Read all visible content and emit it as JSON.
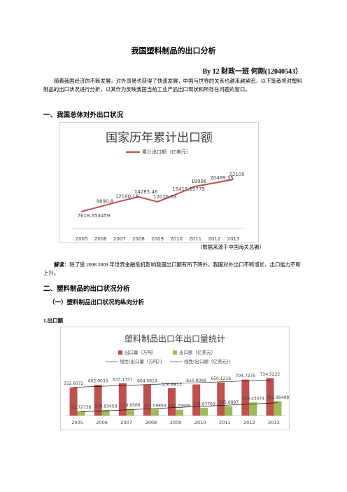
{
  "title": "我国塑料制品的出口分析",
  "author": "By 12 财政一班  何刚(12040543）",
  "intro": "随着我国经济的不断发展，对外贸易也获得了快速发展，中国与世界的关系也越来越紧密。以下笔者将对塑料制品的出口状况进行分析，以其作为反映我国当前工业产品出口现状和所存在问题的窗口。",
  "heading_1": "一、我国总体对外出口状况",
  "source": "（数据来源于中国海关总署）",
  "note": {
    "label": "解读",
    "text": "：除了受 2008  2009 年世界金融危机影响我国出口额有所下降外，我国对外出口不断增长，出口能力不断上升。"
  },
  "heading_2": "二、塑料制品的出口状况分析",
  "heading_2_1": "（一）塑料制品出口状况的纵向分析",
  "heading_2_1_1": "1.出口额",
  "chart_data": [
    {
      "type": "line",
      "title": "国家历年累计出口额",
      "categories": [
        "2005",
        "2006",
        "2007",
        "2008",
        "2009",
        "2010",
        "2011",
        "2012",
        "2013"
      ],
      "series": [
        {
          "name": "累计出口额（亿美元）",
          "color": "#c0504d",
          "values": [
            7618.553459,
            9890.8,
            12180.16,
            14285.46,
            12016.63,
            15415.15779,
            18986,
            20489.35,
            22100
          ]
        }
      ],
      "ylim": [
        0,
        30000
      ]
    },
    {
      "type": "bar",
      "title": "塑料制品出口年出口量统计",
      "categories": [
        "2005",
        "2006",
        "2007",
        "2008",
        "2009",
        "2010",
        "2011",
        "2012",
        "2013"
      ],
      "series": [
        {
          "name": "出口量（万吨）",
          "color": "#c0504d",
          "values": [
            552.6072,
            602.0033,
            633.1357,
            604.0814,
            536.8813,
            610.9099,
            650.1216,
            704.7275,
            734.5222
          ]
        },
        {
          "name": "出口额（亿美元）",
          "color": "#9bbb59",
          "values": [
            91.72738,
            109.83458,
            129.9566,
            123.59864,
            114.79999,
            149.87783,
            185.6897,
            259.43074,
            282.96498
          ]
        }
      ],
      "trendlines": [
        {
          "name": "线性(出口量（万吨）)",
          "color": "#000000"
        },
        {
          "name": "线性(出口额（亿美元）)",
          "color": "#000000"
        }
      ],
      "ylim": [
        0,
        1400
      ]
    }
  ]
}
